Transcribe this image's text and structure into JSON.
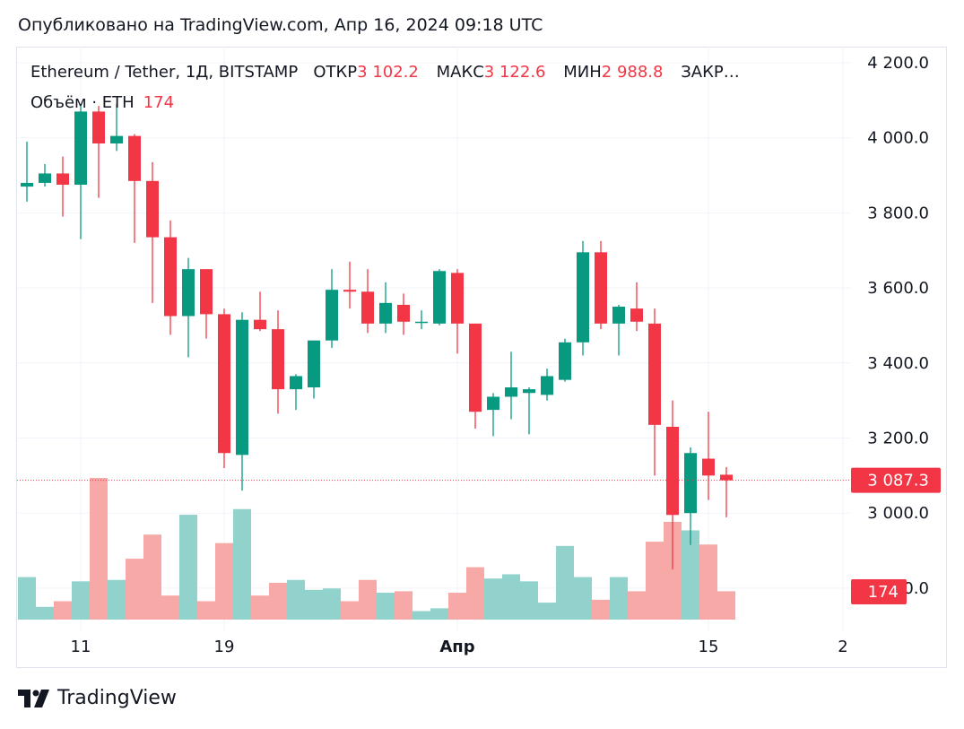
{
  "header": {
    "published": "Опубликовано на TradingView.com, Апр 16, 2024 09:18 UTC"
  },
  "legend": {
    "symbol": "Ethereum / Tether, 1Д, BITSTAMP",
    "open_label": "ОТКР",
    "open_value": "3 102.2",
    "high_label": "МАКС",
    "high_value": "3 122.6",
    "low_label": "МИН",
    "low_value": "2 988.8",
    "close_label": "ЗАКР…",
    "volume_label": "Объём · ETH",
    "volume_value": "174"
  },
  "price_badge": "3 087.3",
  "volume_badge": "174",
  "brand": {
    "name": "TradingView"
  },
  "colors": {
    "up": "#089981",
    "down": "#f23645",
    "up_volume": "#92d2cc",
    "down_volume": "#f7a9a7"
  },
  "chart_data": {
    "type": "candlestick",
    "y_ticks": [
      "4 200.0",
      "4 000.0",
      "3 800.0",
      "3 600.0",
      "3 400.0",
      "3 200.0",
      "3 000.0",
      "2 800.0"
    ],
    "y_tick_values": [
      4200,
      4000,
      3800,
      3600,
      3400,
      3200,
      3000,
      2800
    ],
    "ylim": [
      2718,
      4335
    ],
    "x_labels": [
      {
        "text": "11",
        "index": 3
      },
      {
        "text": "19",
        "index": 11
      },
      {
        "text": "Апр",
        "index": 24
      },
      {
        "text": "15",
        "index": 38
      },
      {
        "text": "2",
        "index": 45.5
      }
    ],
    "last_price": 3087.3,
    "candles": [
      {
        "o": 3870,
        "h": 3990,
        "l": 3830,
        "c": 3880,
        "v": 0.3
      },
      {
        "o": 3880,
        "h": 3930,
        "l": 3870,
        "c": 3905,
        "v": 0.09
      },
      {
        "o": 3905,
        "h": 3950,
        "l": 3790,
        "c": 3875,
        "v": 0.13
      },
      {
        "o": 3875,
        "h": 4090,
        "l": 3730,
        "c": 4070,
        "v": 0.27
      },
      {
        "o": 4070,
        "h": 4085,
        "l": 3840,
        "c": 3985,
        "v": 1.0
      },
      {
        "o": 3985,
        "h": 4090,
        "l": 3965,
        "c": 4005,
        "v": 0.28
      },
      {
        "o": 4005,
        "h": 4010,
        "l": 3720,
        "c": 3885,
        "v": 0.43
      },
      {
        "o": 3885,
        "h": 3935,
        "l": 3560,
        "c": 3735,
        "v": 0.6
      },
      {
        "o": 3735,
        "h": 3780,
        "l": 3475,
        "c": 3525,
        "v": 0.17
      },
      {
        "o": 3525,
        "h": 3680,
        "l": 3415,
        "c": 3650,
        "v": 0.74
      },
      {
        "o": 3650,
        "h": 3650,
        "l": 3465,
        "c": 3530,
        "v": 0.13
      },
      {
        "o": 3530,
        "h": 3545,
        "l": 3120,
        "c": 3160,
        "v": 0.54
      },
      {
        "o": 3155,
        "h": 3535,
        "l": 3060,
        "c": 3515,
        "v": 0.78
      },
      {
        "o": 3515,
        "h": 3590,
        "l": 3485,
        "c": 3490,
        "v": 0.17
      },
      {
        "o": 3490,
        "h": 3540,
        "l": 3265,
        "c": 3330,
        "v": 0.26
      },
      {
        "o": 3330,
        "h": 3370,
        "l": 3275,
        "c": 3365,
        "v": 0.28
      },
      {
        "o": 3335,
        "h": 3455,
        "l": 3305,
        "c": 3460,
        "v": 0.21
      },
      {
        "o": 3460,
        "h": 3650,
        "l": 3440,
        "c": 3595,
        "v": 0.22
      },
      {
        "o": 3595,
        "h": 3670,
        "l": 3545,
        "c": 3590,
        "v": 0.13
      },
      {
        "o": 3590,
        "h": 3650,
        "l": 3480,
        "c": 3505,
        "v": 0.28
      },
      {
        "o": 3505,
        "h": 3615,
        "l": 3480,
        "c": 3560,
        "v": 0.19
      },
      {
        "o": 3555,
        "h": 3585,
        "l": 3475,
        "c": 3510,
        "v": 0.2
      },
      {
        "o": 3510,
        "h": 3540,
        "l": 3490,
        "c": 3510,
        "v": 0.06
      },
      {
        "o": 3505,
        "h": 3650,
        "l": 3500,
        "c": 3645,
        "v": 0.08
      },
      {
        "o": 3640,
        "h": 3650,
        "l": 3425,
        "c": 3505,
        "v": 0.19
      },
      {
        "o": 3505,
        "h": 3505,
        "l": 3225,
        "c": 3270,
        "v": 0.37
      },
      {
        "o": 3275,
        "h": 3320,
        "l": 3205,
        "c": 3310,
        "v": 0.29
      },
      {
        "o": 3310,
        "h": 3430,
        "l": 3250,
        "c": 3335,
        "v": 0.32
      },
      {
        "o": 3320,
        "h": 3335,
        "l": 3210,
        "c": 3330,
        "v": 0.27
      },
      {
        "o": 3315,
        "h": 3385,
        "l": 3300,
        "c": 3365,
        "v": 0.12
      },
      {
        "o": 3355,
        "h": 3465,
        "l": 3350,
        "c": 3455,
        "v": 0.52
      },
      {
        "o": 3455,
        "h": 3725,
        "l": 3420,
        "c": 3695,
        "v": 0.3
      },
      {
        "o": 3695,
        "h": 3725,
        "l": 3490,
        "c": 3505,
        "v": 0.14
      },
      {
        "o": 3505,
        "h": 3555,
        "l": 3420,
        "c": 3550,
        "v": 0.3
      },
      {
        "o": 3545,
        "h": 3615,
        "l": 3485,
        "c": 3510,
        "v": 0.2
      },
      {
        "o": 3505,
        "h": 3545,
        "l": 3100,
        "c": 3235,
        "v": 0.55
      },
      {
        "o": 3230,
        "h": 3300,
        "l": 2850,
        "c": 2995,
        "v": 0.69
      },
      {
        "o": 3000,
        "h": 3175,
        "l": 2915,
        "c": 3160,
        "v": 0.63
      },
      {
        "o": 3145,
        "h": 3270,
        "l": 3035,
        "c": 3100,
        "v": 0.53
      },
      {
        "o": 3102.2,
        "h": 3122.6,
        "l": 2988.8,
        "c": 3087.3,
        "v": 0.2
      }
    ]
  }
}
